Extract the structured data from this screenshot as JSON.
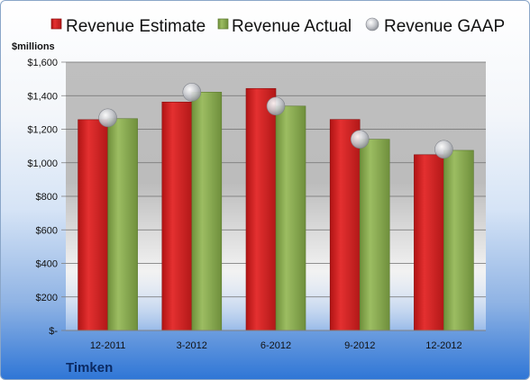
{
  "chart_data": {
    "type": "bar",
    "unit_label": "$millions",
    "company": "Timken",
    "categories": [
      "12-2011",
      "3-2012",
      "6-2012",
      "9-2012",
      "12-2012"
    ],
    "series": [
      {
        "name": "Revenue Estimate",
        "type": "bar",
        "color": "#d62020",
        "values": [
          1257,
          1362,
          1443,
          1258,
          1048
        ]
      },
      {
        "name": "Revenue Actual",
        "type": "bar",
        "color": "#8cae52",
        "values": [
          1263,
          1421,
          1338,
          1140,
          1074
        ]
      },
      {
        "name": "Revenue GAAP",
        "type": "marker",
        "color": "#b9bcc2",
        "values": [
          1268,
          1421,
          1338,
          1140,
          1080
        ]
      }
    ],
    "y_ticks": [
      "$-",
      "$200",
      "$400",
      "$600",
      "$800",
      "$1,000",
      "$1,200",
      "$1,400",
      "$1,600"
    ],
    "ylim": [
      0,
      1600
    ],
    "legend_position": "top",
    "grid": true
  }
}
